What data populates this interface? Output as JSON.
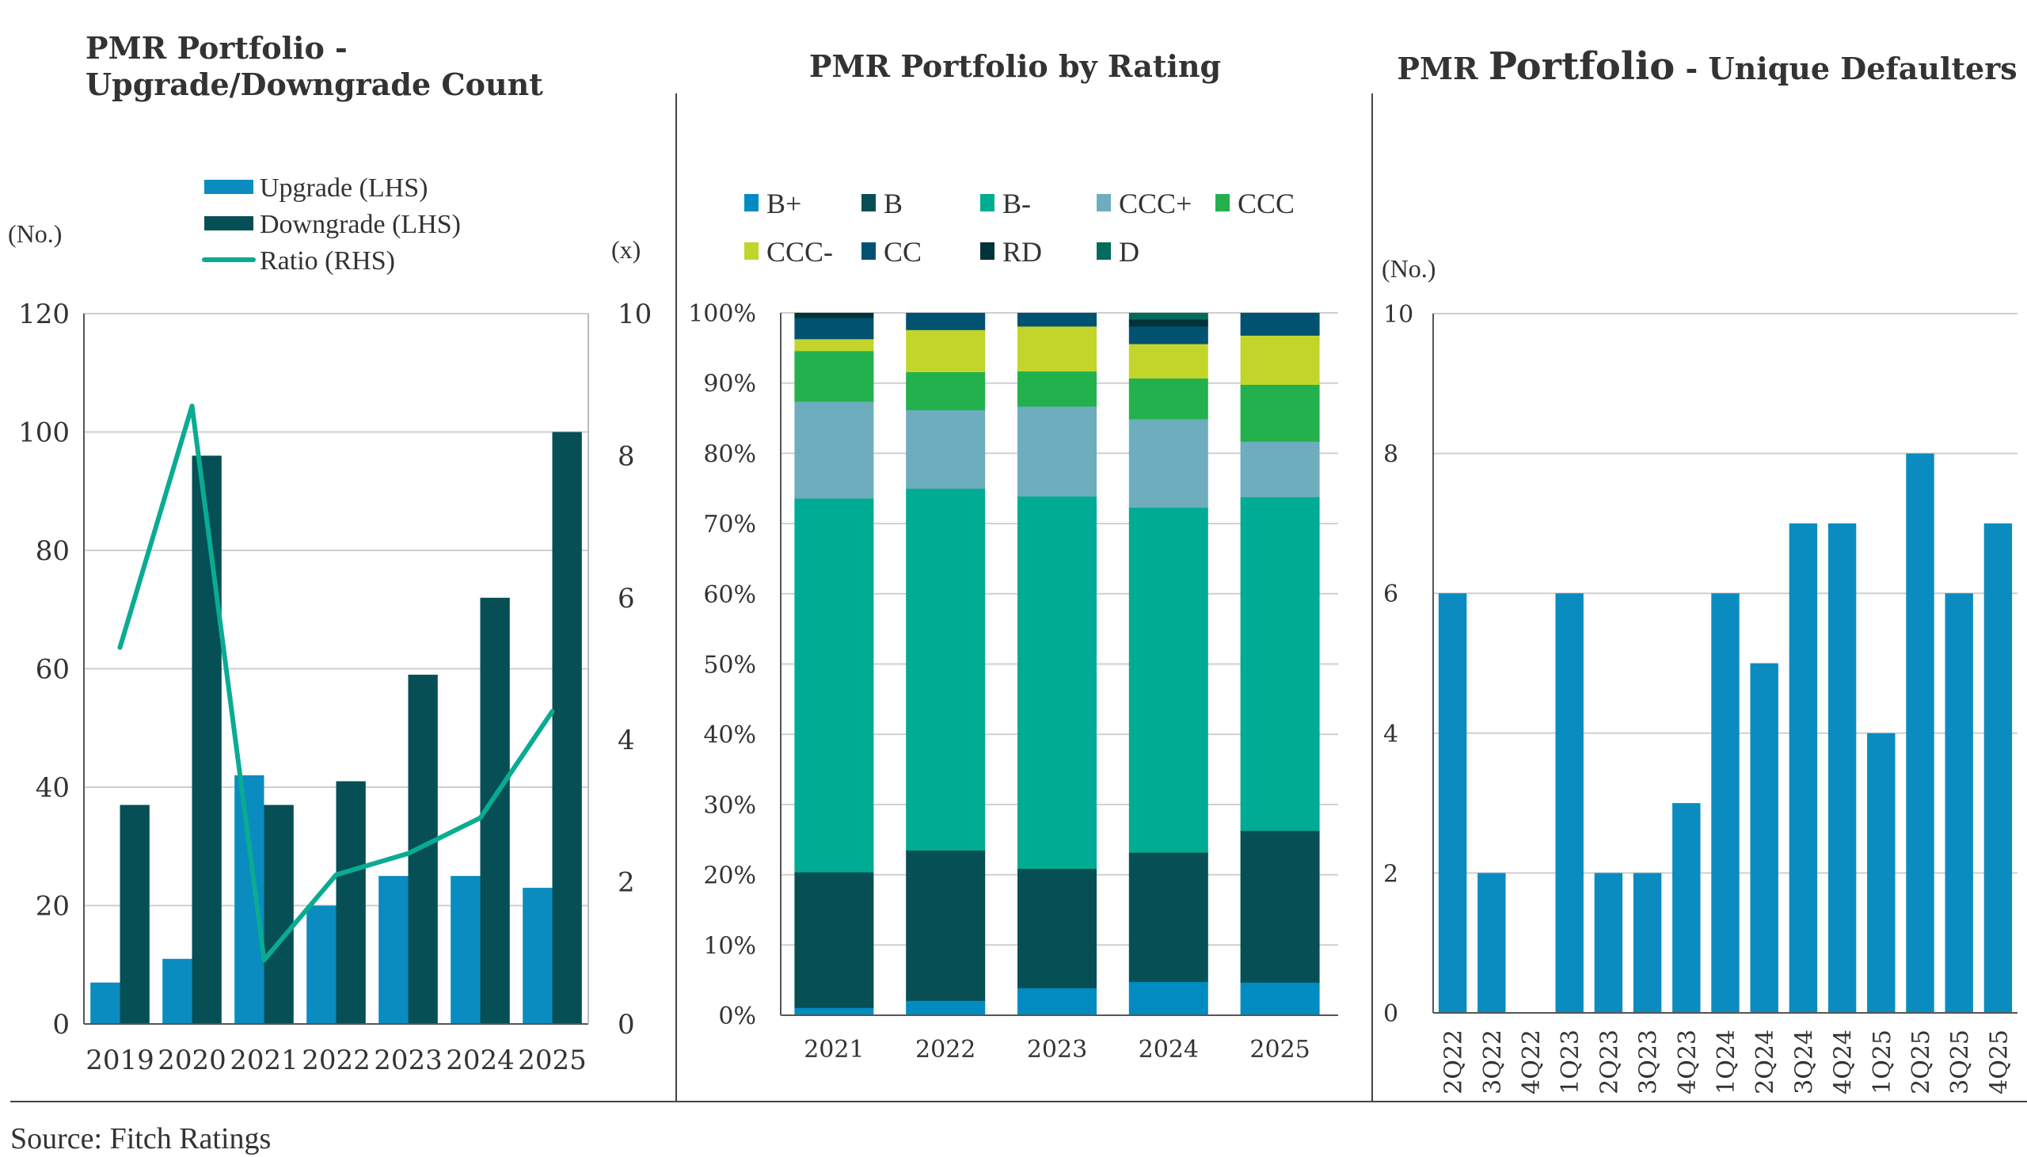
{
  "source": "Source: Fitch Ratings",
  "chart_data": [
    {
      "type": "bar",
      "title_line1": "PMR Portfolio -",
      "title_line2": "Upgrade/Downgrade Count",
      "ylabel_left": "(No.)",
      "ylabel_right": "(x)",
      "categories": [
        "2019",
        "2020",
        "2021",
        "2022",
        "2023",
        "2024",
        "2025"
      ],
      "ylim_left": [
        0,
        120
      ],
      "yticks_left": [
        0,
        20,
        40,
        60,
        80,
        100,
        120
      ],
      "ylim_right": [
        0,
        10
      ],
      "yticks_right": [
        0,
        2,
        4,
        6,
        8,
        10
      ],
      "grid": true,
      "legend_position": "top",
      "series": [
        {
          "name": "Upgrade (LHS)",
          "kind": "bar",
          "axis": "left",
          "color": "#0a8cc0",
          "values": [
            7,
            11,
            42,
            20,
            25,
            25,
            23
          ]
        },
        {
          "name": "Downgrade (LHS)",
          "kind": "bar",
          "axis": "left",
          "color": "#064f55",
          "values": [
            37,
            96,
            37,
            41,
            59,
            72,
            100
          ]
        },
        {
          "name": "Ratio (RHS)",
          "kind": "line",
          "axis": "right",
          "color": "#0aab93",
          "values": [
            5.3,
            8.7,
            0.9,
            2.1,
            2.4,
            2.9,
            4.4
          ]
        }
      ]
    },
    {
      "type": "bar",
      "stacked": true,
      "title": "PMR Portfolio by Rating",
      "categories": [
        "2021",
        "2022",
        "2023",
        "2024",
        "2025"
      ],
      "ylim": [
        0,
        100
      ],
      "yticks": [
        "0%",
        "10%",
        "20%",
        "30%",
        "40%",
        "50%",
        "60%",
        "70%",
        "80%",
        "90%",
        "100%"
      ],
      "grid": true,
      "legend_position": "top",
      "series": [
        {
          "name": "B+",
          "color": "#008cc1",
          "values": [
            1.1,
            2.1,
            3.9,
            4.8,
            4.7
          ]
        },
        {
          "name": "B",
          "color": "#064f55",
          "values": [
            19.3,
            21.4,
            17.0,
            18.4,
            21.6
          ]
        },
        {
          "name": "B-",
          "color": "#00ab93",
          "values": [
            53.2,
            51.5,
            53.0,
            49.1,
            47.5
          ]
        },
        {
          "name": "CCC+",
          "color": "#6eadbd",
          "values": [
            13.8,
            11.2,
            12.8,
            12.6,
            7.9
          ]
        },
        {
          "name": "CCC",
          "color": "#22b14c",
          "values": [
            7.2,
            5.4,
            5.0,
            5.8,
            8.1
          ]
        },
        {
          "name": "CCC-",
          "color": "#c3d52b",
          "values": [
            1.7,
            6.0,
            6.4,
            4.9,
            7.0
          ]
        },
        {
          "name": "CC",
          "color": "#005370",
          "values": [
            3.0,
            2.4,
            1.9,
            2.5,
            3.2
          ]
        },
        {
          "name": "RD",
          "color": "#01333a",
          "values": [
            0.7,
            0.0,
            0.0,
            1.0,
            0.0
          ]
        },
        {
          "name": "D",
          "color": "#026b5b",
          "values": [
            0.0,
            0.0,
            0.0,
            0.9,
            0.0
          ]
        }
      ]
    },
    {
      "type": "bar",
      "title_part1": "PMR ",
      "title_part2": "Portfolio",
      "title_part3": " - Unique Defaulters",
      "ylabel": "(No.)",
      "categories": [
        "2Q22",
        "3Q22",
        "4Q22",
        "1Q23",
        "2Q23",
        "3Q23",
        "4Q23",
        "1Q24",
        "2Q24",
        "3Q24",
        "4Q24",
        "1Q25",
        "2Q25",
        "3Q25",
        "4Q25"
      ],
      "ylim": [
        0,
        10
      ],
      "yticks": [
        0,
        2,
        4,
        6,
        8,
        10
      ],
      "grid": true,
      "series": [
        {
          "name": "Unique Defaulters",
          "color": "#0a8cc0",
          "values": [
            6,
            2,
            0,
            6,
            2,
            2,
            3,
            6,
            5,
            7,
            7,
            4,
            8,
            6,
            7
          ]
        }
      ]
    }
  ]
}
